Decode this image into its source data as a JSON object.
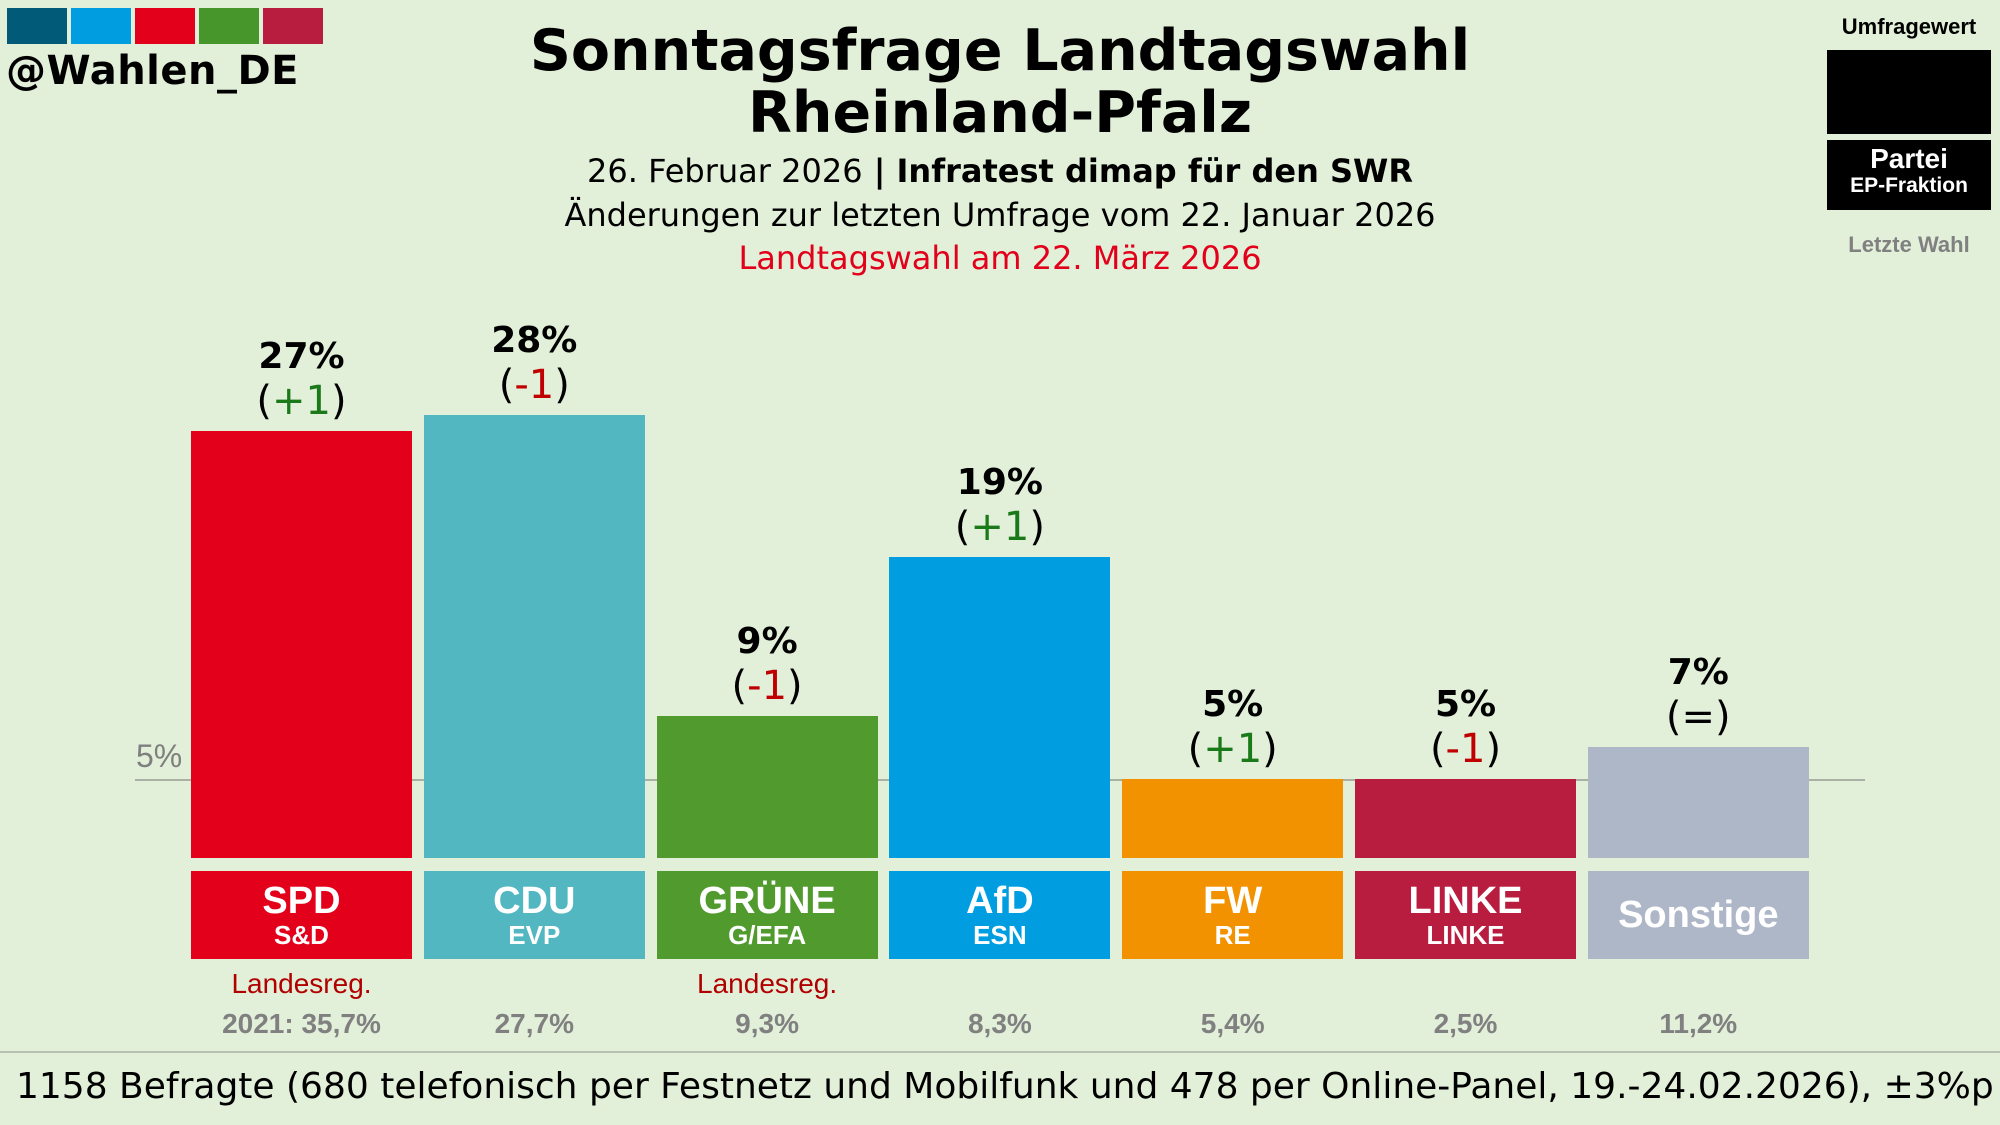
{
  "brand": {
    "handle": "@Wahlen_DE",
    "logo_colors": [
      "#005a78",
      "#009ee0",
      "#e3001b",
      "#46962b",
      "#b81c3f"
    ]
  },
  "header": {
    "title_line1": "Sonntagsfrage Landtagswahl",
    "title_line2": "Rheinland-Pfalz",
    "date": "26. Februar 2026",
    "separator": " | ",
    "institute": "Infratest dimap für den SWR",
    "changes_note": "Änderungen zur letzten Umfrage vom 22. Januar 2026",
    "election_note": "Landtagswahl am 22. März 2026",
    "election_note_color": "#e3001b"
  },
  "legend": {
    "value_label": "Umfragewert",
    "party_label": "Partei",
    "group_label": "EP-Fraktion",
    "last_label": "Letzte Wahl"
  },
  "chart_data": {
    "type": "bar",
    "reference_line": {
      "value": 5,
      "label": "5%"
    },
    "ylim": [
      0,
      30
    ],
    "categories": [
      "SPD",
      "CDU",
      "GRÜNE",
      "AfD",
      "FW",
      "LINKE",
      "Sonstige"
    ],
    "groups": [
      "S&D",
      "EVP",
      "G/EFA",
      "ESN",
      "RE",
      "LINKE",
      ""
    ],
    "values": [
      27,
      28,
      9,
      19,
      5,
      5,
      7
    ],
    "value_labels": [
      "27%",
      "28%",
      "9%",
      "19%",
      "5%",
      "5%",
      "7%"
    ],
    "changes": [
      "+1",
      "-1",
      "-1",
      "+1",
      "+1",
      "-1",
      "="
    ],
    "change_colors": [
      "#1a7a1a",
      "#c00000",
      "#c00000",
      "#1a7a1a",
      "#1a7a1a",
      "#c00000",
      "#000000"
    ],
    "colors": [
      "#e3001b",
      "#52b7c1",
      "#509a2e",
      "#009ee0",
      "#f39200",
      "#b81c3f",
      "#aeb7c8"
    ],
    "government": [
      "Landesreg.",
      "",
      "Landesreg.",
      "",
      "",
      "",
      ""
    ],
    "last_election": [
      "2021: 35,7%",
      "27,7%",
      "9,3%",
      "8,3%",
      "5,4%",
      "2,5%",
      "11,2%"
    ]
  },
  "footer": {
    "text": "1158 Befragte (680 telefonisch per Festnetz und Mobilfunk und 478 per Online-Panel, 19.-24.02.2026), ±3%p"
  }
}
